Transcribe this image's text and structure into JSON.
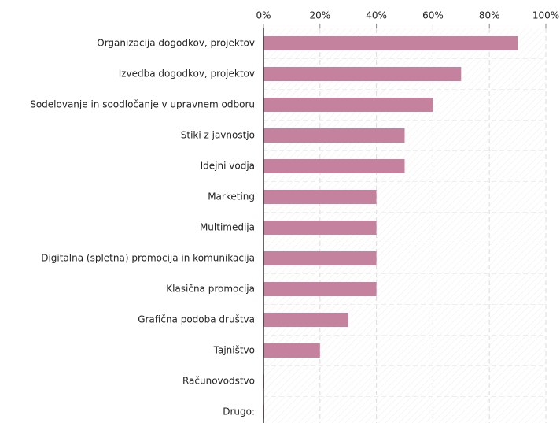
{
  "chart_data": {
    "type": "barh",
    "categories": [
      "Organizacija dogodkov, projektov",
      "Izvedba dogodkov, projektov",
      "Sodelovanje in soodločanje v upravnem odboru",
      "Stiki z javnostjo",
      "Idejni vodja",
      "Marketing",
      "Multimedija",
      "Digitalna (spletna) promocija in komunikacija",
      "Klasična promocija",
      "Grafična podoba društva",
      "Tajništvo",
      "Računovodstvo",
      "Drugo:"
    ],
    "values": [
      90,
      70,
      60,
      50,
      50,
      40,
      40,
      40,
      40,
      30,
      20,
      0,
      0
    ],
    "color": "#c4829f",
    "xlim": [
      0,
      100
    ],
    "xticks": [
      {
        "value": 0,
        "label": "0%"
      },
      {
        "value": 20,
        "label": "20%"
      },
      {
        "value": 40,
        "label": "40%"
      },
      {
        "value": 60,
        "label": "60%"
      },
      {
        "value": 80,
        "label": "80%"
      },
      {
        "value": 100,
        "label": "100%"
      }
    ],
    "grid": true
  }
}
